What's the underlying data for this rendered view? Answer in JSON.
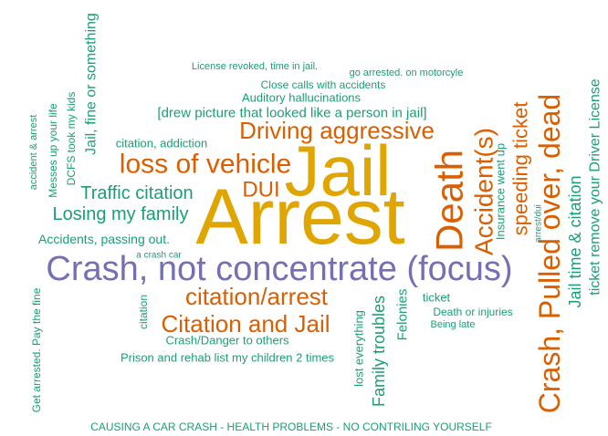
{
  "words": [
    {
      "text": "Arrest",
      "color": "#e0a500"
    },
    {
      "text": "Jail",
      "color": "#e0a500"
    },
    {
      "text": "Crash, not concentrate (focus)",
      "color": "#7570b3"
    },
    {
      "text": "Death",
      "color": "#d95f02"
    },
    {
      "text": "Accident(s)",
      "color": "#d95f02"
    },
    {
      "text": "speeding ticket",
      "color": "#d95f02"
    },
    {
      "text": "Crash, Pulled over, dead",
      "color": "#d95f02"
    },
    {
      "text": "Jail time & citation",
      "color": "#1b9e77"
    },
    {
      "text": "ticket remove your Driver License",
      "color": "#1b9e77"
    },
    {
      "text": "Insurance went up",
      "color": "#1b9e77"
    },
    {
      "text": "arrest/dui",
      "color": "#1b9e77"
    },
    {
      "text": "Driving aggressive",
      "color": "#d95f02"
    },
    {
      "text": "loss of vehicle",
      "color": "#d95f02"
    },
    {
      "text": "DUI",
      "color": "#d95f02"
    },
    {
      "text": "Traffic citation",
      "color": "#1b9e77"
    },
    {
      "text": "Losing my family",
      "color": "#1b9e77"
    },
    {
      "text": "Accidents, passing out.",
      "color": "#1b9e77"
    },
    {
      "text": "a crash car",
      "color": "#1b9e77"
    },
    {
      "text": "citation, addiction",
      "color": "#1b9e77"
    },
    {
      "text": "[drew picture that looked like a person in jail]",
      "color": "#1b9e77"
    },
    {
      "text": "Auditory hallucinations",
      "color": "#1b9e77"
    },
    {
      "text": "Close calls with accidents",
      "color": "#1b9e77"
    },
    {
      "text": "License revoked, time in jail.",
      "color": "#1b9e77"
    },
    {
      "text": "go arrested. on motorcyle",
      "color": "#1b9e77"
    },
    {
      "text": "Jail, fine or something",
      "color": "#1b9e77"
    },
    {
      "text": "DCFS took my kids",
      "color": "#1b9e77"
    },
    {
      "text": "Messes up your life",
      "color": "#1b9e77"
    },
    {
      "text": "accident & arrest",
      "color": "#1b9e77"
    },
    {
      "text": "citation/arrest",
      "color": "#d95f02"
    },
    {
      "text": "Citation and Jail",
      "color": "#d95f02"
    },
    {
      "text": "Crash/Danger to others",
      "color": "#1b9e77"
    },
    {
      "text": "Prison and rehab list my children 2 times",
      "color": "#1b9e77"
    },
    {
      "text": "citation",
      "color": "#1b9e77"
    },
    {
      "text": "lost everything",
      "color": "#1b9e77"
    },
    {
      "text": "Family troubles",
      "color": "#1b9e77"
    },
    {
      "text": "Felonies",
      "color": "#1b9e77"
    },
    {
      "text": "ticket",
      "color": "#1b9e77"
    },
    {
      "text": "Death or injuries",
      "color": "#1b9e77"
    },
    {
      "text": "Being late",
      "color": "#1b9e77"
    },
    {
      "text": "Get arrested. Pay the fine",
      "color": "#1b9e77"
    },
    {
      "text": "CAUSING A CAR CRASH - HEALTH PROBLEMS - NO CONTRILING YOURSELF",
      "color": "#1b9e77"
    }
  ]
}
